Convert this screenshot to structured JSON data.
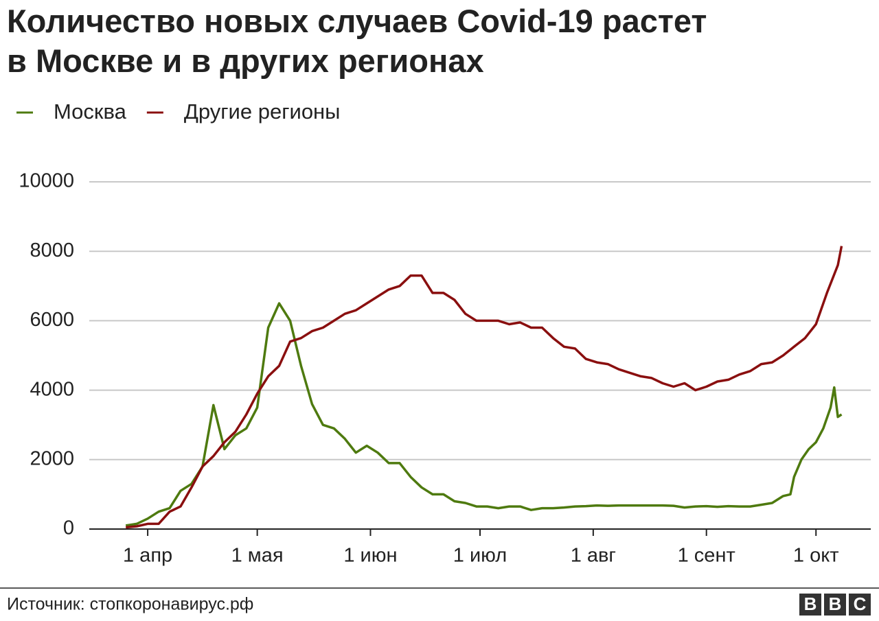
{
  "chart_data": {
    "type": "line",
    "title": "Количество новых случаев Covid-19 растет в Москве и в других регионах",
    "source": "Источник: стопкоронавирус.рф",
    "logo": [
      "B",
      "B",
      "C"
    ],
    "xlim": [
      76,
      290
    ],
    "xticks": [
      {
        "value": 92,
        "label": "1 апр"
      },
      {
        "value": 122,
        "label": "1 мая"
      },
      {
        "value": 153,
        "label": "1 июн"
      },
      {
        "value": 183,
        "label": "1 июл"
      },
      {
        "value": 214,
        "label": "1 авг"
      },
      {
        "value": 245,
        "label": "1 сент"
      },
      {
        "value": 275,
        "label": "1 окт"
      }
    ],
    "ylim": [
      0,
      10000
    ],
    "yticks": [
      0,
      2000,
      4000,
      6000,
      8000,
      10000
    ],
    "grid": true,
    "series": [
      {
        "name": "Москва",
        "color": "#4e7a0f",
        "x": [
          86,
          89,
          92,
          95,
          98,
          101,
          104,
          107,
          110,
          113,
          116,
          119,
          122,
          125,
          128,
          131,
          134,
          137,
          140,
          143,
          146,
          149,
          152,
          155,
          158,
          161,
          164,
          167,
          170,
          173,
          176,
          179,
          182,
          185,
          188,
          191,
          194,
          197,
          200,
          203,
          206,
          209,
          212,
          215,
          218,
          221,
          224,
          227,
          230,
          233,
          236,
          239,
          242,
          245,
          248,
          251,
          254,
          257,
          260,
          263,
          266,
          268,
          269,
          271,
          273,
          275,
          277,
          279,
          280,
          281,
          282
        ],
        "values": [
          100,
          150,
          300,
          500,
          600,
          1100,
          1300,
          1800,
          3570,
          2300,
          2700,
          2900,
          3500,
          5800,
          6500,
          6000,
          4700,
          3600,
          3000,
          2900,
          2600,
          2200,
          2400,
          2200,
          1900,
          1900,
          1500,
          1200,
          1000,
          1000,
          800,
          750,
          650,
          650,
          600,
          650,
          650,
          550,
          600,
          600,
          620,
          650,
          660,
          680,
          670,
          680,
          680,
          680,
          680,
          680,
          670,
          620,
          650,
          660,
          640,
          660,
          650,
          650,
          700,
          750,
          950,
          1000,
          1500,
          2000,
          2300,
          2500,
          2900,
          3500,
          4080,
          3230,
          3300
        ]
      },
      {
        "name": "Другие регионы",
        "color": "#8a0f0f",
        "x": [
          86,
          89,
          92,
          95,
          98,
          101,
          104,
          107,
          110,
          113,
          116,
          119,
          122,
          125,
          128,
          131,
          134,
          137,
          140,
          143,
          146,
          149,
          152,
          155,
          158,
          161,
          164,
          167,
          170,
          173,
          176,
          179,
          182,
          185,
          188,
          191,
          194,
          197,
          200,
          203,
          206,
          209,
          212,
          215,
          218,
          221,
          224,
          227,
          230,
          233,
          236,
          239,
          242,
          245,
          248,
          251,
          254,
          257,
          260,
          263,
          266,
          269,
          272,
          275,
          278,
          281,
          282
        ],
        "values": [
          50,
          80,
          150,
          150,
          500,
          650,
          1200,
          1800,
          2100,
          2500,
          2800,
          3300,
          3900,
          4400,
          4700,
          5400,
          5500,
          5700,
          5800,
          6000,
          6200,
          6300,
          6500,
          6700,
          6900,
          7000,
          7300,
          7300,
          6800,
          6800,
          6600,
          6200,
          6000,
          6000,
          6000,
          5900,
          5950,
          5800,
          5800,
          5500,
          5250,
          5200,
          4900,
          4800,
          4750,
          4600,
          4500,
          4400,
          4350,
          4200,
          4100,
          4200,
          4000,
          4100,
          4250,
          4300,
          4450,
          4550,
          4750,
          4800,
          5000,
          5250,
          5500,
          5900,
          6800,
          7600,
          8150
        ]
      }
    ]
  }
}
